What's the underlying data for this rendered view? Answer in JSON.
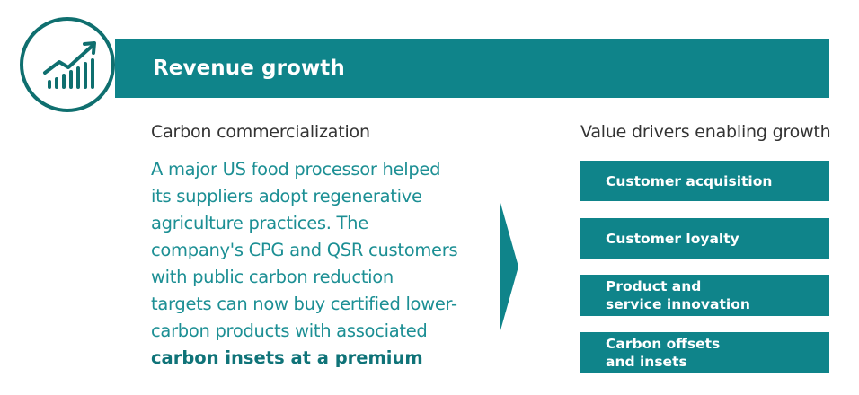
{
  "banner": {
    "title": "Revenue growth",
    "color": "#0f848a",
    "icon": "growth-chart-icon"
  },
  "left": {
    "subtitle": "Carbon commercialization",
    "body_lines": [
      "A major US food processor helped",
      "its suppliers adopt regenerative",
      "agriculture practices. The",
      "company's CPG and QSR customers",
      "with public carbon reduction",
      "targets can now buy certified lower-",
      "carbon products with associated"
    ],
    "body_bold": "carbon insets at a premium"
  },
  "right": {
    "subtitle": "Value drivers enabling growth",
    "drivers": [
      {
        "line1": "Customer acquisition",
        "line2": ""
      },
      {
        "line1": "Customer loyalty",
        "line2": ""
      },
      {
        "line1": "Product and",
        "line2": "service innovation"
      },
      {
        "line1": "Carbon offsets",
        "line2": "and insets"
      }
    ]
  }
}
